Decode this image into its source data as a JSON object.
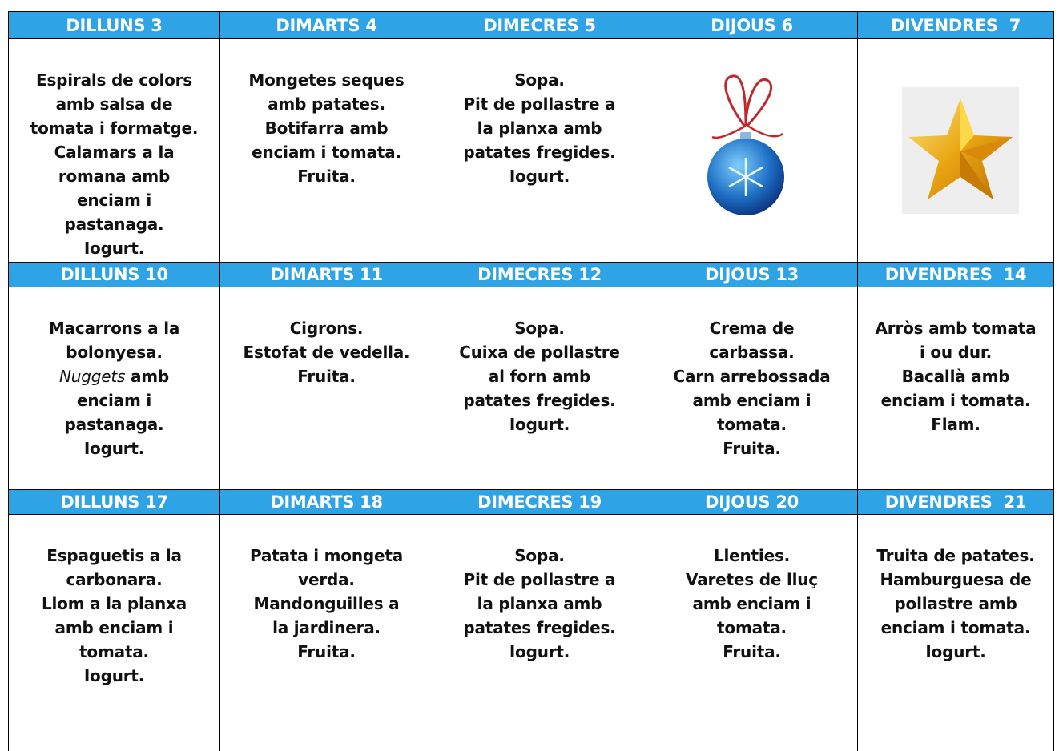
{
  "weeks": [
    {
      "days": [
        {
          "header": "DILLUNS 3",
          "lines": [
            "Espirals de colors",
            "amb salsa de",
            "tomata i formatge.",
            "Calamars a la",
            "romana amb",
            "enciam i",
            "pastanaga.",
            "Iogurt."
          ]
        },
        {
          "header": "DIMARTS 4",
          "lines": [
            "Mongetes seques",
            "amb patates.",
            "Botifarra amb",
            "enciam i tomata.",
            "Fruita."
          ]
        },
        {
          "header": "DIMECRES 5",
          "lines": [
            "Sopa.",
            "Pit de pollastre a",
            "la planxa amb",
            "patates fregides.",
            "Iogurt."
          ]
        },
        {
          "header": "DIJOUS 6",
          "lines": []
        },
        {
          "header": "DIVENDRES  7",
          "lines": []
        }
      ]
    },
    {
      "days": [
        {
          "header": "DILLUNS 10",
          "lines": [
            "Macarrons a la",
            "bolonyesa.",
            {
              "italic": "Nuggets",
              "text": "amb"
            },
            "enciam i",
            "pastanaga.",
            "Iogurt."
          ]
        },
        {
          "header": "DIMARTS 11",
          "lines": [
            "Cigrons.",
            "Estofat de vedella.",
            "Fruita."
          ]
        },
        {
          "header": "DIMECRES 12",
          "lines": [
            "Sopa.",
            "Cuixa de pollastre",
            "al forn amb",
            "patates fregides.",
            "Iogurt."
          ]
        },
        {
          "header": "DIJOUS 13",
          "lines": [
            "Crema de",
            "carbassa.",
            "Carn arrebossada",
            "amb enciam i",
            "tomata.",
            "Fruita."
          ]
        },
        {
          "header": "DIVENDRES  14",
          "lines": [
            "Arròs amb tomata",
            "i ou dur.",
            "Bacallà amb",
            "enciam i tomata.",
            "Flam."
          ]
        }
      ]
    },
    {
      "days": [
        {
          "header": "DILLUNS 17",
          "lines": [
            "Espaguetis a la",
            "carbonara.",
            "Llom a la planxa",
            "amb enciam i",
            "tomata.",
            "Iogurt."
          ]
        },
        {
          "header": "DIMARTS 18",
          "lines": [
            "Patata i mongeta",
            "verda.",
            "Mandonguilles a",
            "la jardinera.",
            "Fruita."
          ]
        },
        {
          "header": "DIMECRES 19",
          "lines": [
            "Sopa.",
            "Pit de pollastre a",
            "la planxa amb",
            "patates fregides.",
            "Iogurt."
          ]
        },
        {
          "header": "DIJOUS 20",
          "lines": [
            "Llenties.",
            "Varetes de lluç",
            "amb enciam i",
            "tomata.",
            "Fruita."
          ]
        },
        {
          "header": "DIVENDRES  21",
          "lines": [
            "Truita de patates.",
            "Hamburguesa de",
            "pollastre amb",
            "enciam i tomata.",
            "Iogurt."
          ]
        }
      ]
    }
  ]
}
